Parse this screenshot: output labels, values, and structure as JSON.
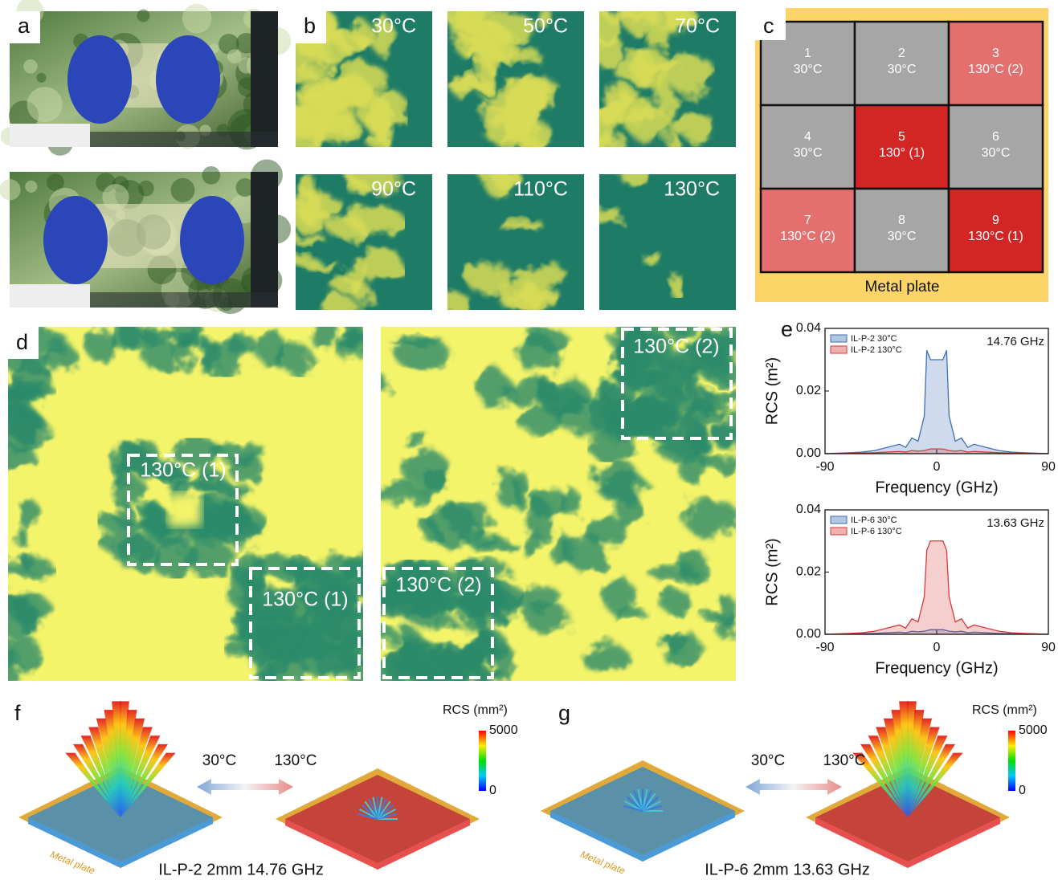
{
  "panel_labels": [
    "a",
    "b",
    "c",
    "d",
    "e",
    "f",
    "g"
  ],
  "b_temperatures": [
    "30°C",
    "50°C",
    "70°C",
    "90°C",
    "110°C",
    "130°C"
  ],
  "c_grid": {
    "cells": [
      {
        "number": "1",
        "temp": "30°C",
        "color": "#a6a6a6"
      },
      {
        "number": "2",
        "temp": "30°C",
        "color": "#a6a6a6"
      },
      {
        "number": "3",
        "temp": "130°C (2)",
        "color": "#e56f6f"
      },
      {
        "number": "4",
        "temp": "30°C",
        "color": "#a6a6a6"
      },
      {
        "number": "5",
        "temp": "130° (1)",
        "color": "#d42525"
      },
      {
        "number": "6",
        "temp": "30°C",
        "color": "#a6a6a6"
      },
      {
        "number": "7",
        "temp": "130°C (2)",
        "color": "#e56f6f"
      },
      {
        "number": "8",
        "temp": "30°C",
        "color": "#a6a6a6"
      },
      {
        "number": "9",
        "temp": "130°C (1)",
        "color": "#d42525"
      }
    ],
    "base_label": "Metal plate"
  },
  "d_boxes": [
    "130°C (1)",
    "130°C (1)",
    "130°C (2)",
    "130°C (2)"
  ],
  "chart_data": [
    {
      "type": "line",
      "annotation": "14.76 GHz",
      "x_label": "Frequency (GHz)",
      "y_label": "RCS (m²)",
      "x": [
        -90,
        -70,
        -60,
        -50,
        -40,
        -30,
        -25,
        -20,
        -15,
        -10,
        -8,
        -5,
        0,
        5,
        8,
        10,
        15,
        20,
        25,
        30,
        40,
        50,
        60,
        70,
        90
      ],
      "series": [
        {
          "name": "IL-P-2 30°C",
          "color": "#3f6fb5",
          "values": [
            0,
            0.0003,
            0.0005,
            0.001,
            0.002,
            0.003,
            0.002,
            0.005,
            0.004,
            0.012,
            0.033,
            0.03,
            0.03,
            0.03,
            0.033,
            0.012,
            0.004,
            0.005,
            0.002,
            0.003,
            0.002,
            0.001,
            0.0005,
            0.0003,
            0
          ]
        },
        {
          "name": "IL-P-2 130°C",
          "color": "#d63a3a",
          "values": [
            0,
            0.0001,
            0.0002,
            0.0003,
            0.0005,
            0.0007,
            0.0005,
            0.001,
            0.0008,
            0.001,
            0.0012,
            0.0015,
            0.0015,
            0.0015,
            0.0012,
            0.001,
            0.0008,
            0.001,
            0.0005,
            0.0007,
            0.0005,
            0.0003,
            0.0002,
            0.0001,
            0
          ]
        }
      ],
      "xlim": [
        -90,
        90
      ],
      "ylim": [
        0,
        0.04
      ],
      "xticks": [
        -90,
        0,
        90
      ],
      "yticks": [
        {
          "value": 0,
          "label": "0.00"
        },
        0.02,
        0.04
      ]
    },
    {
      "type": "line",
      "annotation": "13.63 GHz",
      "x_label": "Frequency (GHz)",
      "y_label": "RCS (m²)",
      "x": [
        -90,
        -70,
        -60,
        -50,
        -40,
        -30,
        -25,
        -20,
        -15,
        -10,
        -8,
        -5,
        0,
        5,
        8,
        10,
        15,
        20,
        25,
        30,
        40,
        50,
        60,
        70,
        90
      ],
      "series": [
        {
          "name": "IL-P-6 30°C",
          "color": "#3f6fb5",
          "values": [
            0,
            0.0001,
            0.0002,
            0.0003,
            0.0005,
            0.0007,
            0.0005,
            0.001,
            0.0008,
            0.001,
            0.0012,
            0.0015,
            0.0015,
            0.0015,
            0.0012,
            0.001,
            0.0008,
            0.001,
            0.0005,
            0.0007,
            0.0005,
            0.0003,
            0.0002,
            0.0001,
            0
          ]
        },
        {
          "name": "IL-P-6 130°C",
          "color": "#d63a3a",
          "values": [
            0,
            0.0003,
            0.0005,
            0.001,
            0.002,
            0.003,
            0.002,
            0.005,
            0.004,
            0.012,
            0.027,
            0.03,
            0.03,
            0.03,
            0.027,
            0.012,
            0.004,
            0.005,
            0.002,
            0.003,
            0.002,
            0.001,
            0.0005,
            0.0003,
            0
          ]
        }
      ],
      "xlim": [
        -90,
        90
      ],
      "ylim": [
        0,
        0.04
      ],
      "xticks": [
        -90,
        0,
        90
      ],
      "yticks": [
        {
          "value": 0,
          "label": "0.00"
        },
        0.02,
        0.04
      ]
    }
  ],
  "f": {
    "colorbar_title": "RCS (mm²)",
    "colorbar_range": [
      0,
      5000
    ],
    "from_temp": "30°C",
    "to_temp": "130°C",
    "caption": "IL-P-2 2mm 14.76 GHz",
    "plate_label": "Metal plate"
  },
  "g": {
    "colorbar_title": "RCS (mm²)",
    "colorbar_range": [
      0,
      5000
    ],
    "from_temp": "30°C",
    "to_temp": "130°C",
    "caption": "IL-P-6 2mm 13.63 GHz",
    "plate_label": "Metal plate"
  }
}
